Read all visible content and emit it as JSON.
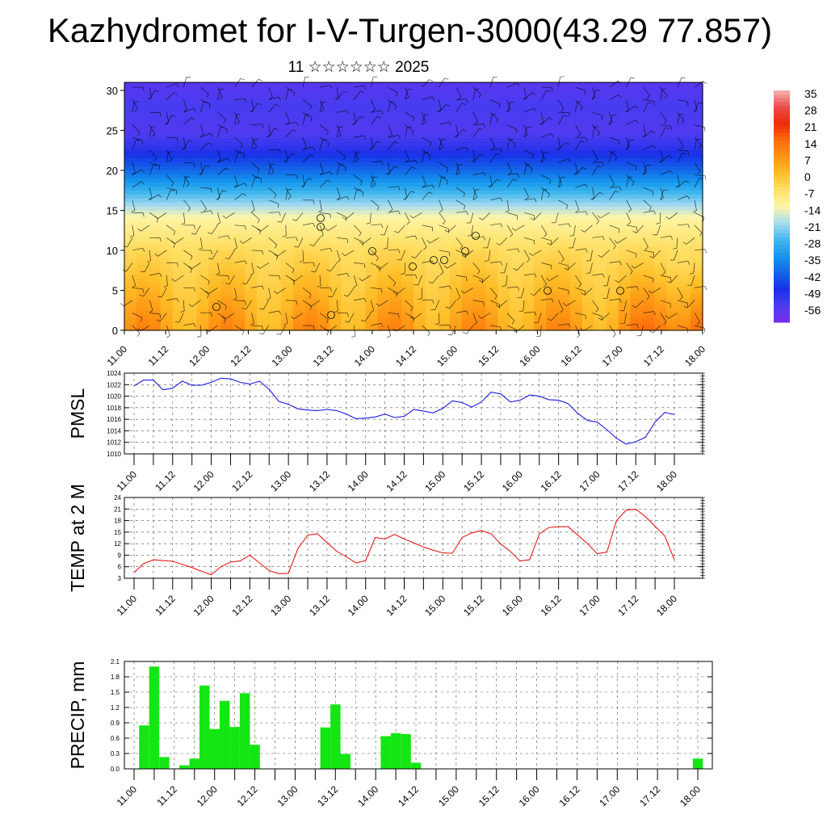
{
  "title": "Kazhydromet for I-V-Turgen-3000(43.29 77.857)",
  "subtitle": "11 ☆☆☆☆☆☆ 2025",
  "time_labels": [
    "11.00",
    "11.12",
    "12.00",
    "12.12",
    "13.00",
    "13.12",
    "14.00",
    "14.12",
    "15.00",
    "15.12",
    "16.00",
    "16.12",
    "17.00",
    "17.12",
    "18.00"
  ],
  "chart_data": [
    {
      "type": "heatmap",
      "title": "",
      "xlabel": "",
      "ylabel": "",
      "categories": [
        "11.00",
        "11.12",
        "12.00",
        "12.12",
        "13.00",
        "13.12",
        "14.00",
        "14.12",
        "15.00",
        "15.12",
        "16.00",
        "16.12",
        "17.00",
        "17.12",
        "18.00"
      ],
      "y_ticks": [
        0,
        5,
        10,
        15,
        20,
        25,
        30
      ],
      "ylim": [
        0,
        31
      ],
      "colorbar_labels": [
        "35",
        "28",
        "21",
        "14",
        "7",
        "0",
        "-7",
        "-14",
        "-21",
        "-28",
        "-35",
        "-42",
        "-49",
        "-56"
      ],
      "colorbar_colors": [
        "#7a2cf0",
        "#4a3cf0",
        "#1830e8",
        "#1464e8",
        "#1496ee",
        "#44b8ee",
        "#a8dcf0",
        "#fff6a8",
        "#ffe066",
        "#ffbe28",
        "#ff9414",
        "#ff6a0a",
        "#ee2a0a",
        "#ee4a4a",
        "#f4b6b6"
      ],
      "temperature_profile": [
        {
          "height": 0,
          "temp": 10
        },
        {
          "height": 5,
          "temp": 4
        },
        {
          "height": 10,
          "temp": -2
        },
        {
          "height": 14,
          "temp": -10
        },
        {
          "height": 17,
          "temp": -25
        },
        {
          "height": 20,
          "temp": -40
        },
        {
          "height": 23,
          "temp": -52
        },
        {
          "height": 25,
          "temp": -57
        },
        {
          "height": 28,
          "temp": -55
        },
        {
          "height": 31,
          "temp": -58
        }
      ]
    },
    {
      "type": "line",
      "title": "",
      "xlabel": "",
      "ylabel": "PMSL",
      "series": [
        {
          "x": [
            0,
            3,
            6,
            9,
            12,
            15,
            18,
            21,
            24,
            27,
            30,
            33,
            36,
            39,
            42,
            45,
            48,
            51,
            54,
            57,
            60,
            63,
            66,
            69,
            72,
            75,
            78,
            81,
            84,
            87,
            90,
            93,
            96,
            99,
            102,
            105,
            108,
            111,
            114,
            117,
            120,
            123,
            126,
            129,
            132,
            135,
            138,
            141,
            144,
            147,
            150,
            153,
            156,
            159,
            162,
            165,
            168
          ],
          "values": [
            1021.8,
            1022.8,
            1022.8,
            1021.1,
            1021.4,
            1022.6,
            1021.9,
            1021.9,
            1022.4,
            1023.1,
            1023.0,
            1022.4,
            1022.1,
            1022.6,
            1021.2,
            1019.1,
            1018.6,
            1017.8,
            1017.6,
            1017.5,
            1017.7,
            1017.5,
            1016.9,
            1016.1,
            1016.2,
            1016.4,
            1016.9,
            1016.3,
            1016.5,
            1017.7,
            1017.4,
            1017.1,
            1017.9,
            1019.2,
            1018.9,
            1018.1,
            1019.0,
            1020.7,
            1020.4,
            1019.0,
            1019.3,
            1020.2,
            1020.0,
            1019.4,
            1019.3,
            1018.7,
            1017.0,
            1015.8,
            1015.5,
            1014.2,
            1012.7,
            1011.7,
            1012.1,
            1012.9,
            1015.5,
            1017.2,
            1016.8
          ]
        }
      ],
      "ylim": [
        1010,
        1024
      ],
      "y_ticks": [
        1010,
        1012,
        1014,
        1016,
        1018,
        1020,
        1022,
        1024
      ],
      "color": "#1a1ae8"
    },
    {
      "type": "line",
      "title": "",
      "xlabel": "",
      "ylabel": "TEMP at 2 M",
      "series": [
        {
          "x": [
            0,
            3,
            6,
            9,
            12,
            15,
            18,
            21,
            24,
            27,
            30,
            33,
            36,
            39,
            42,
            45,
            48,
            51,
            54,
            57,
            60,
            63,
            66,
            69,
            72,
            75,
            78,
            81,
            84,
            87,
            90,
            93,
            96,
            99,
            102,
            105,
            108,
            111,
            114,
            117,
            120,
            123,
            126,
            129,
            132,
            135,
            138,
            141,
            144,
            147,
            150,
            153,
            156,
            159,
            162,
            165,
            168
          ],
          "values": [
            4.5,
            6.8,
            7.8,
            7.6,
            7.4,
            6.6,
            5.8,
            4.8,
            3.9,
            6.0,
            7.2,
            7.5,
            9.0,
            7.0,
            5.0,
            4.2,
            4.3,
            10.8,
            14.2,
            14.6,
            12.3,
            10.0,
            8.6,
            7.0,
            7.6,
            13.6,
            13.2,
            14.4,
            13.2,
            12.2,
            11.1,
            10.3,
            9.6,
            9.5,
            13.6,
            14.8,
            15.4,
            14.6,
            11.9,
            10.0,
            7.5,
            7.8,
            14.5,
            16.2,
            16.4,
            16.4,
            14.2,
            12.0,
            9.4,
            9.8,
            18.0,
            20.7,
            21.0,
            19.0,
            16.5,
            14.0,
            7.8
          ]
        }
      ],
      "ylim": [
        3,
        24
      ],
      "y_ticks": [
        3,
        6,
        9,
        12,
        15,
        18,
        21,
        24
      ],
      "color": "#e81a1a"
    },
    {
      "type": "bar",
      "title": "",
      "xlabel": "",
      "ylabel": "PRECIP, mm",
      "bar_x": [
        1,
        2,
        3,
        4,
        5,
        6,
        7,
        8,
        9,
        10,
        11,
        12,
        13,
        14,
        15,
        16,
        17,
        18,
        19,
        20,
        21,
        22,
        23,
        24,
        25,
        26,
        27,
        28,
        29,
        30,
        31,
        32,
        33,
        34,
        35,
        36,
        37,
        38,
        39,
        40,
        41,
        42,
        43,
        44,
        45,
        46,
        47,
        48,
        49,
        50,
        51,
        52,
        53,
        54,
        55,
        56
      ],
      "values": [
        0.85,
        2.0,
        0.23,
        0,
        0.07,
        0.2,
        1.63,
        0.78,
        1.33,
        0.82,
        1.48,
        0.47,
        0,
        0,
        0,
        0,
        0,
        0,
        0.81,
        1.26,
        0.29,
        0,
        0,
        0,
        0.64,
        0.7,
        0.68,
        0.12,
        0,
        0,
        0,
        0,
        0,
        0,
        0,
        0,
        0,
        0,
        0,
        0,
        0,
        0,
        0,
        0,
        0,
        0,
        0,
        0,
        0,
        0,
        0,
        0,
        0,
        0,
        0,
        0.2
      ],
      "ylim": [
        0,
        2.1
      ],
      "y_ticks": [
        "0.0",
        "0.3",
        "0.6",
        "0.9",
        "1.2",
        "1.5",
        "1.8",
        "2.1"
      ],
      "color": "#14e614"
    }
  ]
}
